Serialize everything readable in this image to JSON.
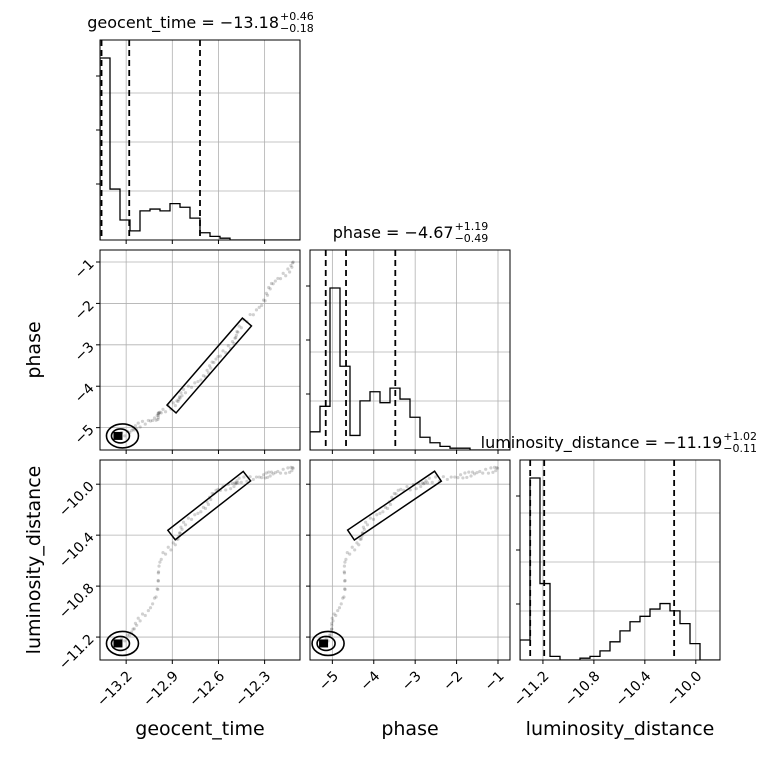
{
  "chart_data": {
    "type": "corner",
    "parameters": [
      "geocent_time",
      "phase",
      "luminosity_distance"
    ],
    "titles": [
      {
        "param": "geocent_time",
        "main": "geocent_time = −13.18",
        "plus": "+0.46",
        "minus": "−0.18"
      },
      {
        "param": "phase",
        "main": "phase = −4.67",
        "plus": "+1.19",
        "minus": "−0.49"
      },
      {
        "param": "luminosity_distance",
        "main": "luminosity_distance = −11.19",
        "plus": "+1.02",
        "minus": "−0.11"
      }
    ],
    "ranges": {
      "geocent_time": [
        -13.37,
        -12.07
      ],
      "phase": [
        -5.54,
        -0.71
      ],
      "luminosity_distance": [
        -11.38,
        -9.81
      ]
    },
    "ticks": {
      "geocent_time": {
        "values": [
          -13.2,
          -12.9,
          -12.6,
          -12.3
        ],
        "labels": [
          "−13.2",
          "−12.9",
          "−12.6",
          "−12.3"
        ]
      },
      "phase": {
        "values": [
          -5,
          -4,
          -3,
          -2,
          -1
        ],
        "labels": [
          "−5",
          "−4",
          "−3",
          "−2",
          "−1"
        ]
      },
      "luminosity_distance": {
        "values": [
          -11.2,
          -10.8,
          -10.4,
          -10.0
        ],
        "labels": [
          "−11.2",
          "−10.8",
          "−10.4",
          "−10.0"
        ]
      }
    },
    "quantiles": {
      "geocent_time": [
        -13.36,
        -13.18,
        -12.72
      ],
      "phase": [
        -5.16,
        -4.67,
        -3.48
      ],
      "luminosity_distance": [
        -11.3,
        -11.19,
        -10.17
      ]
    },
    "histograms": {
      "geocent_time": [
        1.0,
        0.28,
        0.11,
        0.05,
        0.16,
        0.17,
        0.16,
        0.2,
        0.18,
        0.12,
        0.04,
        0.02,
        0.01,
        0.0,
        0.0,
        0.0,
        0.0,
        0.0,
        0.0,
        0.0
      ],
      "phase": [
        0.1,
        0.24,
        0.89,
        0.46,
        0.08,
        0.27,
        0.32,
        0.26,
        0.34,
        0.28,
        0.18,
        0.07,
        0.04,
        0.02,
        0.01,
        0.01,
        0.0,
        0.0,
        0.0,
        0.0
      ],
      "luminosity_distance": [
        0.11,
        1.0,
        0.42,
        0.02,
        0.0,
        0.0,
        0.01,
        0.02,
        0.05,
        0.1,
        0.16,
        0.21,
        0.24,
        0.28,
        0.31,
        0.27,
        0.2,
        0.09,
        0.0,
        0.0
      ]
    },
    "scatter_trend": [
      {
        "geocent_time": -13.25,
        "phase": -5.2,
        "luminosity_distance": -11.25
      },
      {
        "geocent_time": -13.05,
        "phase": -4.85,
        "luminosity_distance": -11.0
      },
      {
        "geocent_time": -12.95,
        "phase": -4.6,
        "luminosity_distance": -10.55
      },
      {
        "geocent_time": -12.8,
        "phase": -4.1,
        "luminosity_distance": -10.3
      },
      {
        "geocent_time": -12.6,
        "phase": -3.35,
        "luminosity_distance": -10.05
      },
      {
        "geocent_time": -12.45,
        "phase": -2.6,
        "luminosity_distance": -9.97
      },
      {
        "geocent_time": -12.25,
        "phase": -1.6,
        "luminosity_distance": -9.92
      },
      {
        "geocent_time": -12.1,
        "phase": -0.95,
        "luminosity_distance": -9.87
      }
    ],
    "grid": true
  }
}
